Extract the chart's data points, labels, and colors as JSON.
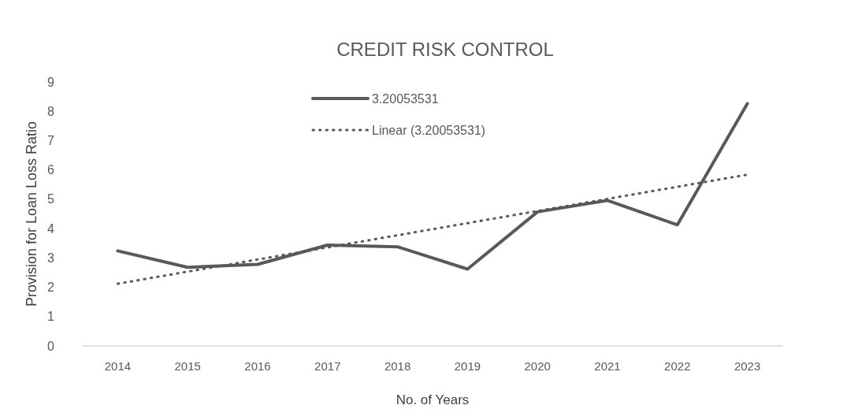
{
  "chart_data": {
    "type": "line",
    "title": "CREDIT RISK CONTROL",
    "xlabel": "No. of Years",
    "ylabel": "Provision for Loan Loss Ratio",
    "categories": [
      "2014",
      "2015",
      "2016",
      "2017",
      "2018",
      "2019",
      "2020",
      "2021",
      "2022",
      "2023"
    ],
    "series": [
      {
        "name": "3.20053531",
        "color": "#595959",
        "line_style": "solid",
        "values": [
          3.24,
          2.68,
          2.78,
          3.44,
          3.38,
          2.62,
          4.57,
          4.96,
          4.13,
          8.26
        ]
      },
      {
        "name": "Linear (3.20053531)",
        "color": "#595959",
        "line_style": "dotted",
        "values": [
          2.12,
          null,
          null,
          null,
          null,
          null,
          null,
          null,
          null,
          5.84
        ]
      }
    ],
    "ylim": [
      0,
      9
    ],
    "yticks": [
      0,
      1,
      2,
      3,
      4,
      5,
      6,
      7,
      8,
      9
    ],
    "grid": false,
    "legend": "top",
    "marker": "none"
  }
}
